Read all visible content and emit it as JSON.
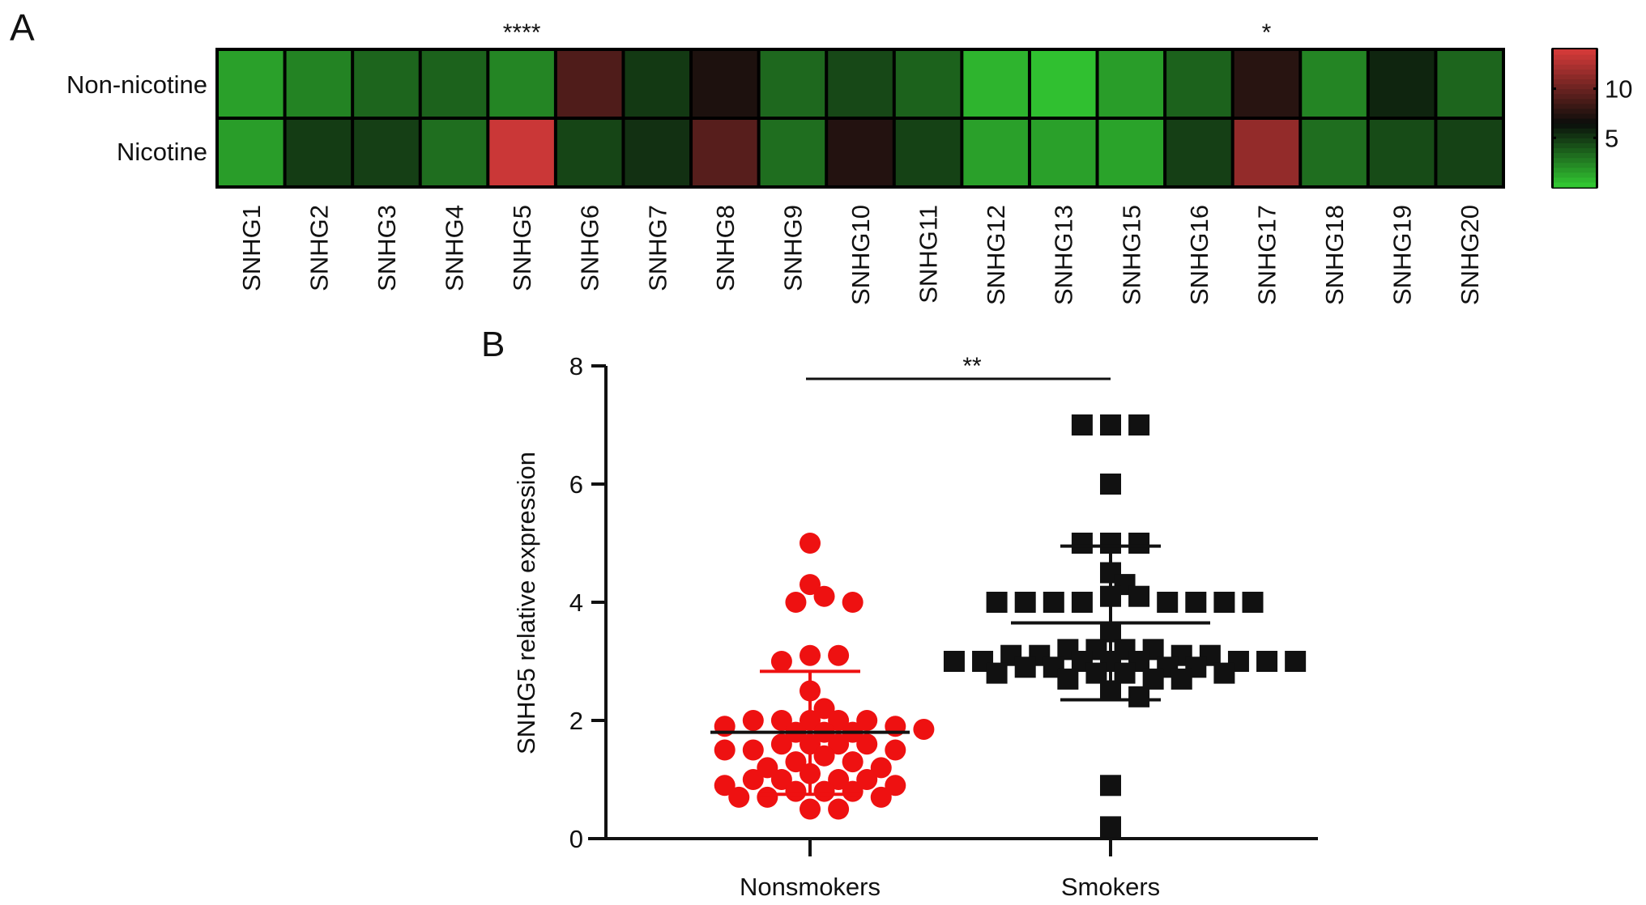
{
  "chart_data": [
    {
      "type": "heatmap",
      "panel_label": "A",
      "rows": [
        "Non-nicotine",
        "Nicotine"
      ],
      "columns": [
        "SNHG1",
        "SNHG2",
        "SNHG3",
        "SNHG4",
        "SNHG5",
        "SNHG6",
        "SNHG7",
        "SNHG8",
        "SNHG9",
        "SNHG10",
        "SNHG11",
        "SNHG12",
        "SNHG13",
        "SNHG15",
        "SNHG16",
        "SNHG17",
        "SNHG18",
        "SNHG19",
        "SNHG20"
      ],
      "values": [
        [
          1.5,
          2.5,
          3.5,
          3.6,
          2.4,
          9.0,
          5.0,
          7.2,
          3.4,
          4.5,
          3.6,
          0.8,
          0.4,
          1.6,
          3.6,
          7.6,
          2.4,
          5.7,
          3.5
        ],
        [
          1.6,
          4.9,
          4.8,
          3.2,
          13.5,
          4.6,
          5.3,
          9.3,
          3.2,
          7.4,
          4.7,
          1.5,
          1.5,
          1.4,
          4.8,
          11.5,
          3.2,
          4.4,
          4.7
        ]
      ],
      "significance": [
        {
          "column": "SNHG5",
          "label": "****"
        },
        {
          "column": "SNHG17",
          "label": "*"
        }
      ],
      "colorbar": {
        "range": [
          0,
          14
        ],
        "ticks": [
          10,
          5
        ],
        "tick_labels": [
          "10",
          "5"
        ]
      },
      "colors": {
        "low": "#33cc33",
        "mid": "#0a0d0a",
        "high": "#d83a3a",
        "mid_value": 6.5
      }
    },
    {
      "type": "scatter",
      "panel_label": "B",
      "ylabel": "SNHG5 relative expression",
      "xlabel": "",
      "ylim": [
        0,
        8
      ],
      "yticks": [
        0,
        2,
        4,
        6,
        8
      ],
      "ytick_labels": [
        "0",
        "2",
        "4",
        "6",
        "8"
      ],
      "categories": [
        "Nonsmokers",
        "Smokers"
      ],
      "significance": {
        "label": "**",
        "between": [
          "Nonsmokers",
          "Smokers"
        ]
      },
      "series": [
        {
          "name": "Nonsmokers",
          "marker": "circle",
          "color": "#ee1111",
          "mean": 1.8,
          "sd_upper": 2.83,
          "sd_lower": 0.75,
          "values": [
            5.0,
            4.3,
            4.1,
            4.0,
            4.0,
            3.1,
            3.0,
            3.1,
            2.5,
            2.2,
            2.0,
            2.0,
            2.0,
            2.0,
            2.0,
            1.9,
            1.9,
            1.85,
            1.8,
            1.8,
            1.8,
            1.6,
            1.6,
            1.6,
            1.6,
            1.5,
            1.5,
            1.5,
            1.4,
            1.3,
            1.3,
            1.2,
            1.2,
            1.1,
            1.0,
            1.0,
            1.0,
            1.0,
            0.9,
            0.9,
            0.8,
            0.8,
            0.8,
            0.7,
            0.7,
            0.7,
            0.5,
            0.5
          ]
        },
        {
          "name": "Smokers",
          "marker": "square",
          "color": "#111111",
          "mean": 3.65,
          "sd_upper": 4.95,
          "sd_lower": 2.35,
          "values": [
            7.0,
            7.0,
            7.0,
            6.0,
            5.0,
            5.0,
            5.0,
            4.5,
            4.3,
            4.1,
            4.1,
            4.0,
            4.0,
            4.0,
            4.0,
            4.0,
            4.0,
            4.0,
            4.0,
            3.5,
            3.2,
            3.2,
            3.2,
            3.2,
            3.1,
            3.1,
            3.1,
            3.1,
            3.0,
            3.0,
            3.0,
            3.0,
            3.0,
            3.0,
            3.0,
            3.0,
            2.9,
            2.9,
            2.9,
            2.9,
            2.8,
            2.8,
            2.8,
            2.8,
            2.7,
            2.7,
            2.7,
            2.5,
            2.4,
            0.9,
            0.2
          ]
        }
      ]
    }
  ]
}
